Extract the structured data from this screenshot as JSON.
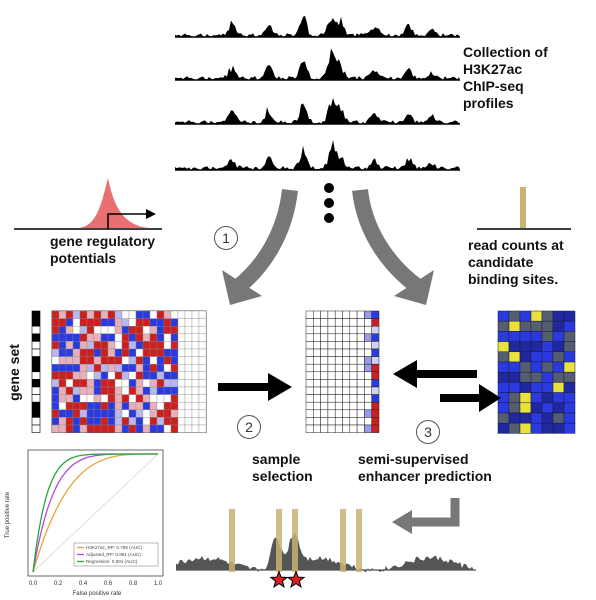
{
  "labels": {
    "collection": "Collection of\nH3K27ac\nChIP-seq\nprofiles",
    "gene_regulatory": "gene regulatory\npotentials",
    "read_counts": "read counts at\ncandidate\nbinding sites.",
    "gene_set": "gene set",
    "sample_selection": "sample\nselection",
    "semi_supervised": "semi-supervised\nenhancer prediction"
  },
  "steps": [
    "1",
    "2",
    "3"
  ],
  "roc": {
    "xlabel": "False positive rate",
    "ylabel": "True positive rate",
    "ticks": [
      "0.0",
      "0.2",
      "0.4",
      "0.6",
      "0.8",
      "1.0"
    ],
    "legend": [
      {
        "text": "H3K27ac_RP: 0.786 (AUC)",
        "color": "#e8a33a"
      },
      {
        "text": "Adjusted_RP: 0.861 (AUC)",
        "color": "#b54ad9"
      },
      {
        "text": "Regression: 0.901 (AUC)",
        "color": "#27a83a"
      }
    ]
  },
  "colors": {
    "peak": "#e87070",
    "bar": "#c9b274",
    "heat_red": "#cc2020",
    "heat_blue": "#2a3adf",
    "heat_yellow": "#e8e23a",
    "arrow_gray": "#777777",
    "star": "#e02020"
  }
}
